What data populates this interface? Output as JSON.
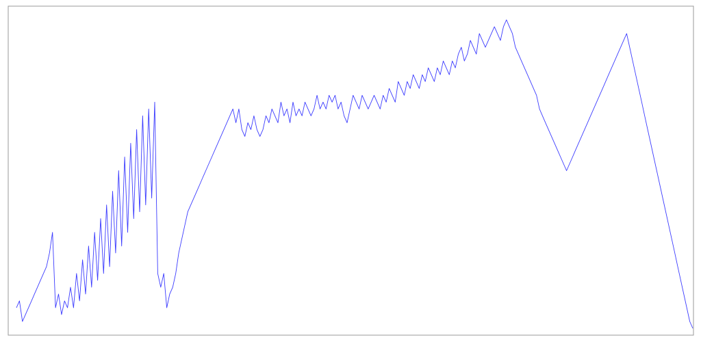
{
  "chart_data": {
    "type": "line",
    "title": "",
    "xlabel": "",
    "ylabel": "",
    "grid": false,
    "legend": "none",
    "xlim": [
      0,
      223
    ],
    "ylim": [
      0,
      480
    ],
    "colors": {
      "series": "#3b3bff",
      "frame": "#999999",
      "background": "#ffffff"
    },
    "series": [
      {
        "values": [
          40,
          50,
          20,
          30,
          40,
          50,
          60,
          70,
          80,
          90,
          100,
          120,
          150,
          40,
          60,
          30,
          50,
          40,
          70,
          40,
          90,
          50,
          110,
          60,
          130,
          70,
          150,
          80,
          170,
          90,
          190,
          100,
          210,
          120,
          240,
          130,
          260,
          150,
          280,
          170,
          300,
          180,
          320,
          190,
          330,
          200,
          340,
          90,
          70,
          90,
          40,
          60,
          70,
          90,
          120,
          140,
          160,
          180,
          190,
          200,
          210,
          220,
          230,
          240,
          250,
          260,
          270,
          280,
          290,
          300,
          310,
          320,
          330,
          310,
          330,
          300,
          290,
          310,
          300,
          320,
          300,
          290,
          300,
          320,
          310,
          330,
          320,
          310,
          340,
          320,
          330,
          310,
          340,
          320,
          330,
          320,
          340,
          330,
          320,
          330,
          350,
          330,
          340,
          330,
          350,
          340,
          350,
          330,
          340,
          320,
          310,
          330,
          350,
          340,
          330,
          350,
          340,
          330,
          340,
          350,
          340,
          330,
          350,
          340,
          360,
          350,
          340,
          370,
          360,
          350,
          370,
          360,
          380,
          370,
          360,
          380,
          370,
          390,
          380,
          370,
          390,
          380,
          400,
          390,
          380,
          400,
          390,
          410,
          420,
          400,
          410,
          430,
          420,
          410,
          440,
          430,
          420,
          430,
          440,
          450,
          440,
          430,
          450,
          460,
          450,
          440,
          420,
          410,
          400,
          390,
          380,
          370,
          360,
          350,
          330,
          320,
          310,
          300,
          290,
          280,
          270,
          260,
          250,
          240,
          250,
          260,
          270,
          280,
          290,
          300,
          310,
          320,
          330,
          340,
          350,
          360,
          370,
          380,
          390,
          400,
          410,
          420,
          430,
          440,
          420,
          400,
          380,
          360,
          340,
          320,
          300,
          280,
          260,
          240,
          220,
          200,
          180,
          160,
          140,
          120,
          100,
          80,
          60,
          40,
          20,
          10
        ]
      }
    ]
  }
}
